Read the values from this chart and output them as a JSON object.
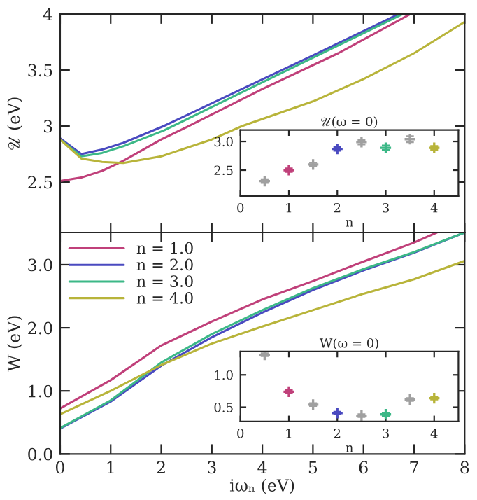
{
  "chart_data": [
    {
      "type": "line",
      "ylabel": "𝒰 (eV)",
      "xlim": [
        0,
        8
      ],
      "xticks": [
        0,
        1,
        2,
        3,
        4,
        5,
        6,
        7,
        8
      ],
      "ylim": [
        2.05,
        4
      ],
      "yticks": [
        2.5,
        3,
        3.5,
        4
      ],
      "tick_labels": "y",
      "series": [
        {
          "color": "#c0407a",
          "x": [
            0,
            0.42,
            0.83,
            1.25,
            2,
            2.5,
            4,
            5.5,
            6.93
          ],
          "values": [
            2.51,
            2.54,
            2.6,
            2.69,
            2.88,
            2.99,
            3.33,
            3.65,
            4.0
          ]
        },
        {
          "color": "#4a4ac0",
          "x": [
            0,
            0.42,
            0.83,
            1.25,
            2.05,
            3.5,
            5,
            6.7
          ],
          "values": [
            2.89,
            2.75,
            2.79,
            2.85,
            3.0,
            3.31,
            3.63,
            4.0
          ]
        },
        {
          "color": "#3cb887",
          "x": [
            0,
            0.42,
            0.83,
            1.25,
            2.05,
            3.5,
            5,
            6.78
          ],
          "values": [
            2.88,
            2.73,
            2.76,
            2.82,
            2.96,
            3.28,
            3.61,
            4.0
          ]
        },
        {
          "color": "#b8b43a",
          "x": [
            0,
            0.42,
            0.83,
            1.25,
            2,
            3,
            3.6,
            5,
            6,
            7,
            8
          ],
          "values": [
            2.88,
            2.71,
            2.68,
            2.67,
            2.73,
            2.88,
            3.0,
            3.22,
            3.42,
            3.65,
            3.93
          ]
        }
      ]
    },
    {
      "type": "scatter",
      "marker": "cross",
      "title": "𝒰(ω = 0)",
      "xlabel": "n",
      "xlim": [
        0,
        4.5
      ],
      "xticks": [
        0,
        1,
        2,
        3,
        4
      ],
      "ylim": [
        2.05,
        3.2
      ],
      "yticks": [
        {
          "value": 2.5,
          "label": "2.5"
        },
        {
          "value": 3.0,
          "label": "3.0"
        }
      ],
      "series": [
        {
          "color": "#a0a0a0",
          "x": [
            0.5,
            1.5,
            2.5,
            3.5
          ],
          "values": [
            2.31,
            2.6,
            2.99,
            3.04
          ],
          "errors": [
            0.03,
            0.03,
            0.04,
            0.05
          ]
        },
        {
          "color": "#c0407a",
          "x": [
            1
          ],
          "values": [
            2.5
          ],
          "errors": [
            0.03
          ]
        },
        {
          "color": "#4a4ac0",
          "x": [
            2
          ],
          "values": [
            2.87
          ],
          "errors": [
            0.03
          ]
        },
        {
          "color": "#3cb887",
          "x": [
            3
          ],
          "values": [
            2.89
          ],
          "errors": [
            0.04
          ]
        },
        {
          "color": "#b8b43a",
          "x": [
            4
          ],
          "values": [
            2.89
          ],
          "errors": [
            0.03
          ]
        }
      ]
    },
    {
      "type": "line",
      "xlabel": "iωₙ (eV)",
      "ylabel": "W (eV)",
      "xlim": [
        0,
        8
      ],
      "xticks": [
        0,
        1,
        2,
        3,
        4,
        5,
        6,
        7,
        8
      ],
      "ylim": [
        0,
        3.51
      ],
      "yticks": [
        {
          "value": 0,
          "label": "0.0"
        },
        {
          "value": 1,
          "label": "1.0"
        },
        {
          "value": 2,
          "label": "2.0"
        },
        {
          "value": 3,
          "label": "3.0"
        }
      ],
      "legend": "top left",
      "series": [
        {
          "name": "n = 1.0",
          "color": "#c0407a",
          "x": [
            0,
            1,
            2,
            3,
            4,
            5,
            6,
            7,
            7.45
          ],
          "values": [
            0.72,
            1.17,
            1.72,
            2.1,
            2.45,
            2.74,
            3.05,
            3.35,
            3.51
          ]
        },
        {
          "name": "n = 2.0",
          "color": "#4a4ac0",
          "x": [
            0,
            1,
            2,
            3,
            4,
            5,
            6,
            7,
            8
          ],
          "values": [
            0.4,
            0.83,
            1.4,
            1.85,
            2.24,
            2.6,
            2.91,
            3.19,
            3.51
          ]
        },
        {
          "name": "n = 3.0",
          "color": "#3cb887",
          "x": [
            0,
            1,
            2,
            3,
            4,
            5,
            6,
            7,
            8
          ],
          "values": [
            0.41,
            0.85,
            1.45,
            1.9,
            2.28,
            2.63,
            2.93,
            3.2,
            3.51
          ]
        },
        {
          "name": "n = 4.0",
          "color": "#b8b43a",
          "x": [
            0,
            1,
            2,
            3,
            4,
            5,
            6,
            7,
            8
          ],
          "values": [
            0.63,
            1.0,
            1.41,
            1.75,
            2.02,
            2.28,
            2.54,
            2.77,
            3.06
          ]
        }
      ]
    },
    {
      "type": "scatter",
      "marker": "cross",
      "title": "W(ω = 0)",
      "xlabel": "n",
      "xlim": [
        0,
        4.5
      ],
      "xticks": [
        0,
        1,
        2,
        3,
        4
      ],
      "ylim": [
        0.28,
        1.36
      ],
      "yticks": [
        {
          "value": 0.5,
          "label": "0.5"
        },
        {
          "value": 1.0,
          "label": "1.0"
        }
      ],
      "series": [
        {
          "color": "#a0a0a0",
          "x": [
            0.5,
            1.5,
            2.5,
            3.5
          ],
          "values": [
            1.31,
            0.54,
            0.37,
            0.62
          ],
          "errors": [
            0.02,
            0.02,
            0.02,
            0.02
          ]
        },
        {
          "color": "#c0407a",
          "x": [
            1
          ],
          "values": [
            0.74
          ],
          "errors": [
            0.02
          ]
        },
        {
          "color": "#4a4ac0",
          "x": [
            2
          ],
          "values": [
            0.41
          ],
          "errors": [
            0.02
          ]
        },
        {
          "color": "#3cb887",
          "x": [
            3
          ],
          "values": [
            0.39
          ],
          "errors": [
            0.02
          ]
        },
        {
          "color": "#b8b43a",
          "x": [
            4
          ],
          "values": [
            0.64
          ],
          "errors": [
            0.02
          ]
        }
      ]
    }
  ]
}
